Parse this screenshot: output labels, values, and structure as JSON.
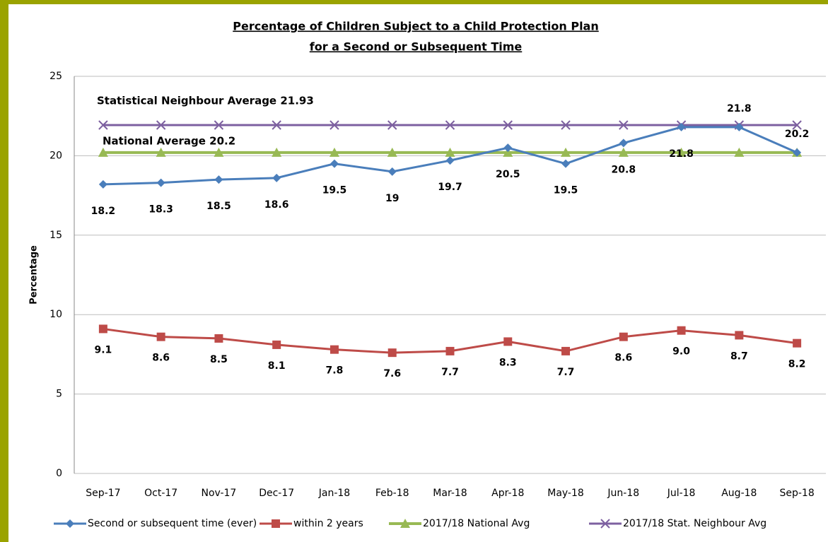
{
  "chart_data": {
    "type": "line",
    "title": [
      "Percentage of Children Subject to a Child Protection Plan",
      "for a Second or Subsequent Time"
    ],
    "y_label": "Percentage",
    "categories": [
      "Sep-17",
      "Oct-17",
      "Nov-17",
      "Dec-17",
      "Jan-18",
      "Feb-18",
      "Mar-18",
      "Apr-18",
      "May-18",
      "Jun-18",
      "Jul-18",
      "Aug-18",
      "Sep-18"
    ],
    "series": [
      {
        "name": "Second or subsequent time (ever)",
        "color": "#4a7ebb",
        "marker": "diamond",
        "values": [
          18.2,
          18.3,
          18.5,
          18.6,
          19.5,
          19,
          19.7,
          20.5,
          19.5,
          20.8,
          21.8,
          21.8,
          20.2
        ]
      },
      {
        "name": "within 2 years",
        "color": "#be4b48",
        "marker": "square",
        "values": [
          9.1,
          8.6,
          8.5,
          8.1,
          7.8,
          7.6,
          7.7,
          8.3,
          7.7,
          8.6,
          9.0,
          8.7,
          8.2
        ],
        "value_labels": [
          "9.1",
          "8.6",
          "8.5",
          "8.1",
          "7.8",
          "7.6",
          "7.7",
          "8.3",
          "7.7",
          "8.6",
          "9.0",
          "8.7",
          "8.2"
        ]
      },
      {
        "name": "2017/18 National Avg",
        "color": "#98b954",
        "marker": "triangle",
        "values": [
          20.2,
          20.2,
          20.2,
          20.2,
          20.2,
          20.2,
          20.2,
          20.2,
          20.2,
          20.2,
          20.2,
          20.2,
          20.2
        ]
      },
      {
        "name": "2017/18 Stat. Neighbour Avg",
        "color": "#7d60a0",
        "marker": "x",
        "values": [
          21.93,
          21.93,
          21.93,
          21.93,
          21.93,
          21.93,
          21.93,
          21.93,
          21.93,
          21.93,
          21.93,
          21.93,
          21.93
        ]
      }
    ],
    "annotations": [
      "Statistical Neighbour Average 21.93",
      "National Average 20.2"
    ],
    "ylim": [
      0,
      25
    ],
    "yticks": [
      0,
      5,
      10,
      15,
      20,
      25
    ],
    "grid": true
  }
}
